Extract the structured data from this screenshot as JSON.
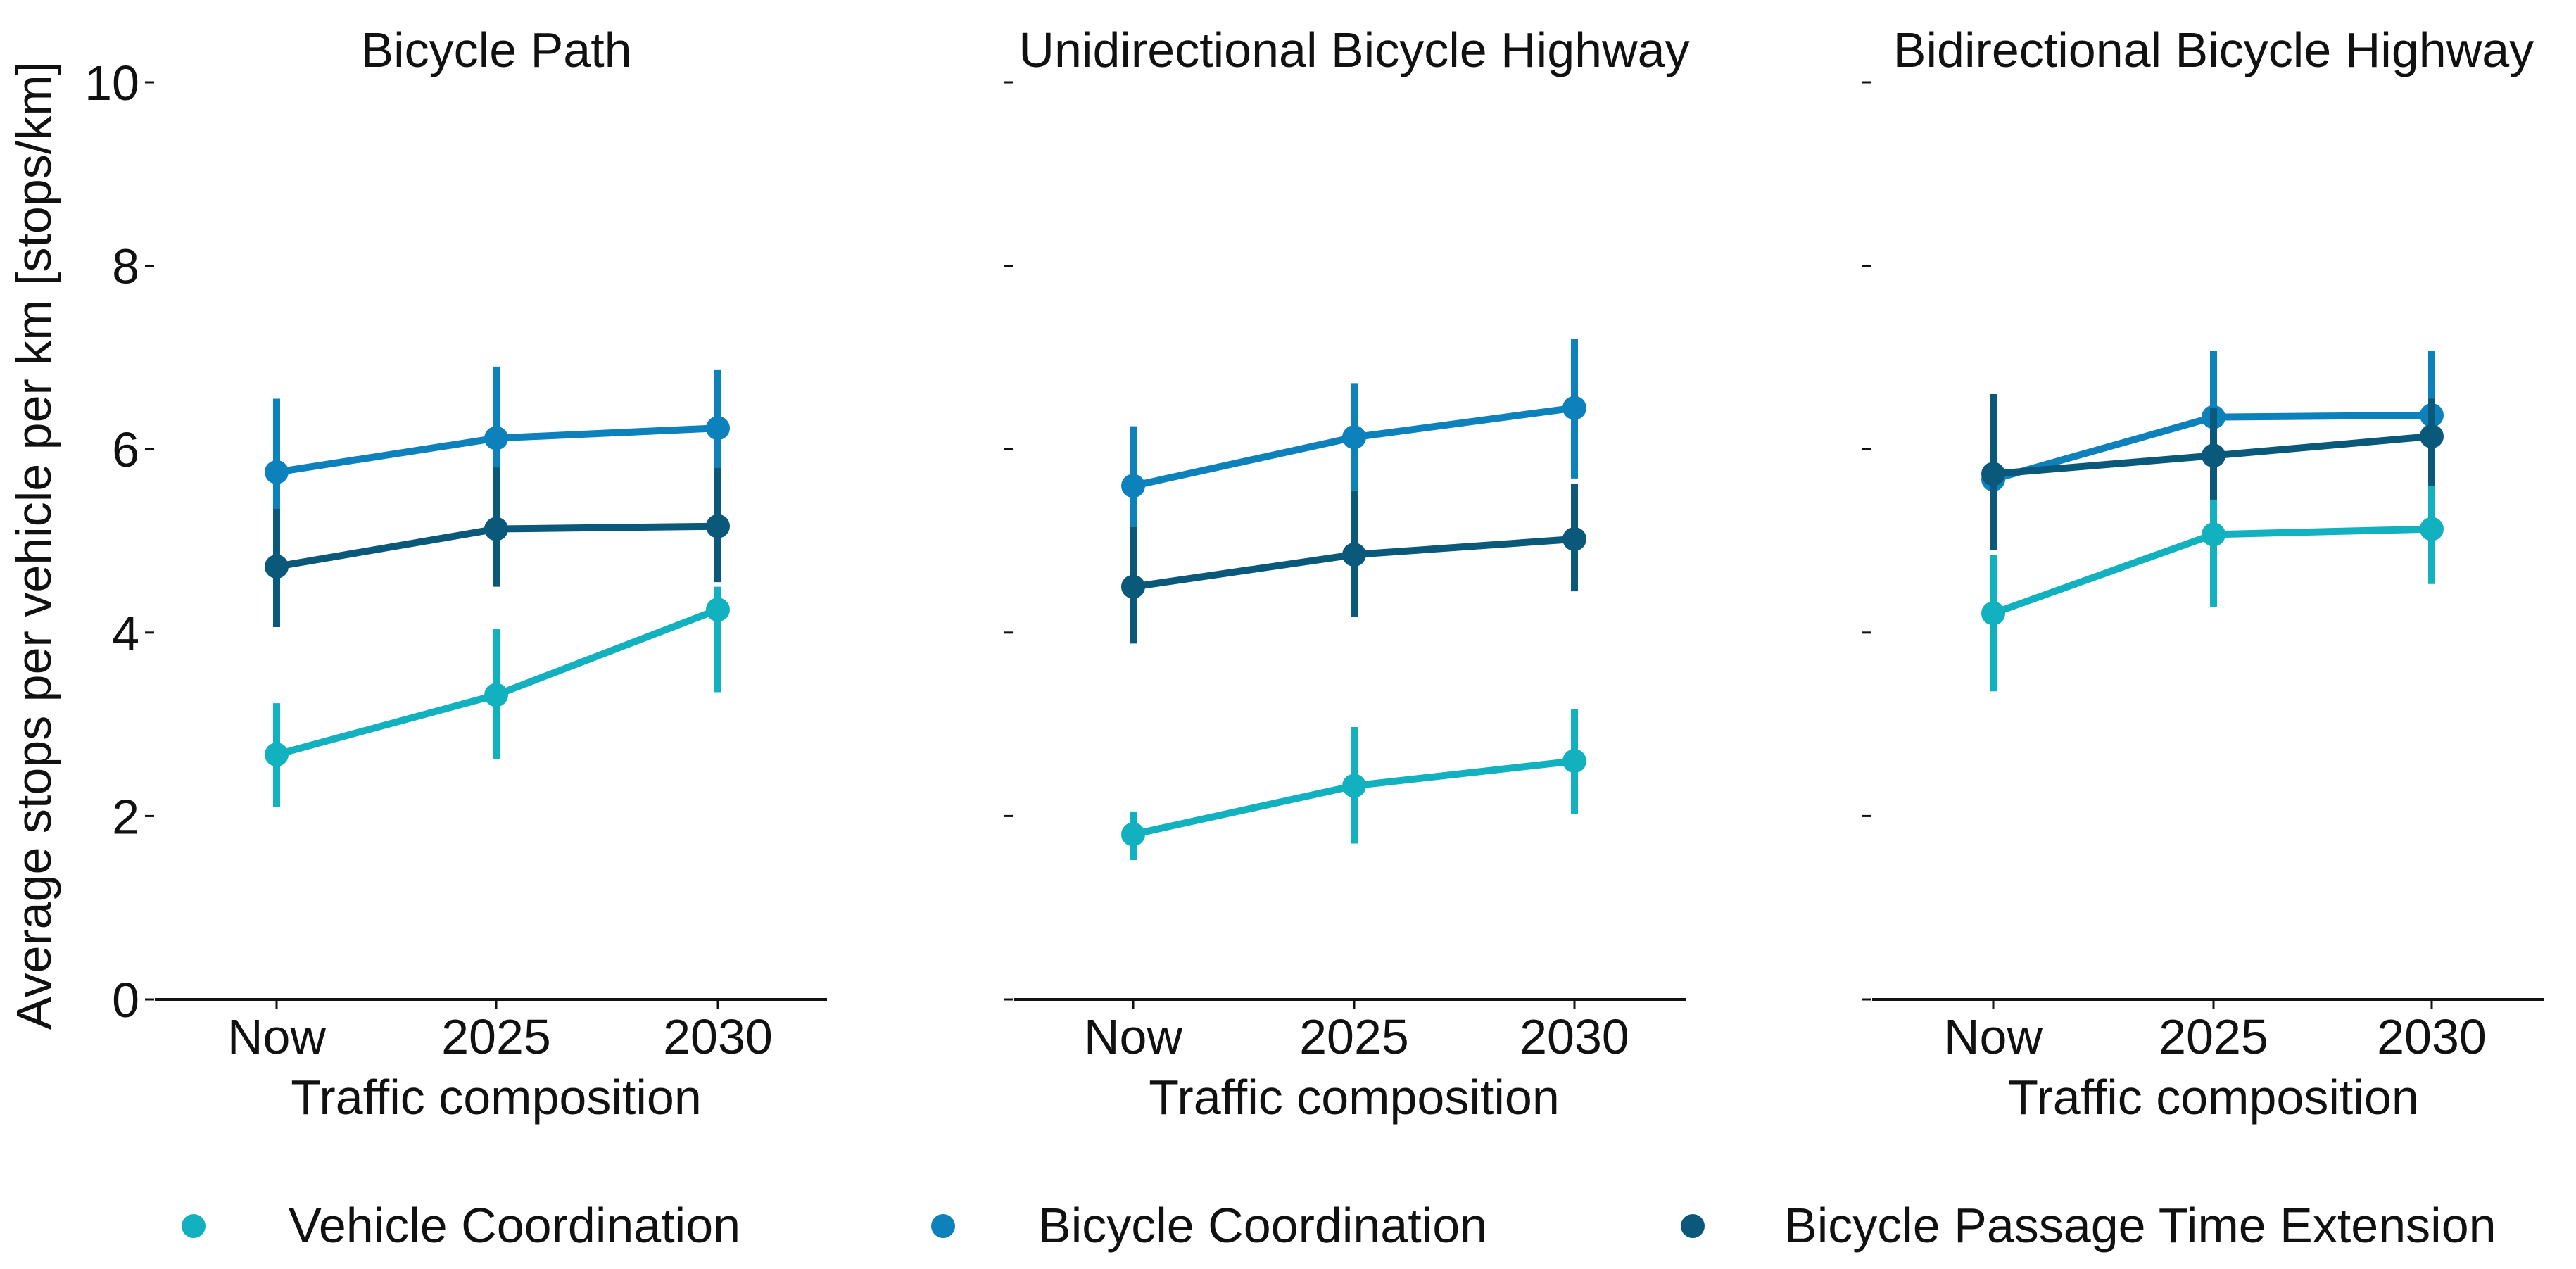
{
  "chart_data": {
    "type": "line",
    "ylabel": "Average stops per vehicle per km [stops/km]",
    "xlabel": "Traffic composition",
    "ylim": [
      0,
      10
    ],
    "yticks": [
      0,
      2,
      4,
      6,
      8,
      10
    ],
    "categories": [
      "Now",
      "2025",
      "2030"
    ],
    "legend_position": "bottom",
    "series_meta": [
      {
        "name": "Vehicle Coordination",
        "color": "#12B1C0"
      },
      {
        "name": "Bicycle Coordination",
        "color": "#0D81BC"
      },
      {
        "name": "Bicycle Passage Time Extension",
        "color": "#0A587A"
      }
    ],
    "panels": [
      {
        "title": "Bicycle Path",
        "series": [
          {
            "name": "Vehicle Coordination",
            "values": [
              2.67,
              3.32,
              4.25
            ],
            "err_low": [
              2.1,
              2.62,
              3.35
            ],
            "err_high": [
              3.23,
              4.04,
              4.5
            ]
          },
          {
            "name": "Bicycle Coordination",
            "values": [
              5.75,
              6.12,
              6.23
            ],
            "err_low": [
              5.15,
              5.4,
              5.8
            ],
            "err_high": [
              6.55,
              6.9,
              6.87
            ]
          },
          {
            "name": "Bicycle Passage Time Extension",
            "values": [
              4.72,
              5.13,
              5.16
            ],
            "err_low": [
              4.06,
              4.5,
              4.55
            ],
            "err_high": [
              5.35,
              5.8,
              5.8
            ]
          }
        ]
      },
      {
        "title": "Unidirectional Bicycle Highway",
        "series": [
          {
            "name": "Vehicle Coordination",
            "values": [
              1.8,
              2.33,
              2.6
            ],
            "err_low": [
              1.52,
              1.7,
              2.02
            ],
            "err_high": [
              2.05,
              2.97,
              3.17
            ]
          },
          {
            "name": "Bicycle Coordination",
            "values": [
              5.6,
              6.13,
              6.45
            ],
            "err_low": [
              5.0,
              5.55,
              5.68
            ],
            "err_high": [
              6.25,
              6.72,
              7.2
            ]
          },
          {
            "name": "Bicycle Passage Time Extension",
            "values": [
              4.5,
              4.85,
              5.02
            ],
            "err_low": [
              3.88,
              4.17,
              4.45
            ],
            "err_high": [
              5.15,
              5.55,
              5.62
            ]
          }
        ]
      },
      {
        "title": "Bidirectional Bicycle Highway",
        "series": [
          {
            "name": "Vehicle Coordination",
            "values": [
              4.21,
              5.07,
              5.13
            ],
            "err_low": [
              3.36,
              4.28,
              4.53
            ],
            "err_high": [
              4.85,
              5.65,
              5.6
            ]
          },
          {
            "name": "Bicycle Coordination",
            "values": [
              5.67,
              6.35,
              6.37
            ],
            "err_low": [
              4.95,
              5.85,
              5.9
            ],
            "err_high": [
              6.35,
              7.07,
              7.07
            ]
          },
          {
            "name": "Bicycle Passage Time Extension",
            "values": [
              5.73,
              5.93,
              6.14
            ],
            "err_low": [
              4.9,
              5.45,
              5.6
            ],
            "err_high": [
              6.6,
              6.45,
              6.55
            ]
          }
        ]
      }
    ]
  }
}
